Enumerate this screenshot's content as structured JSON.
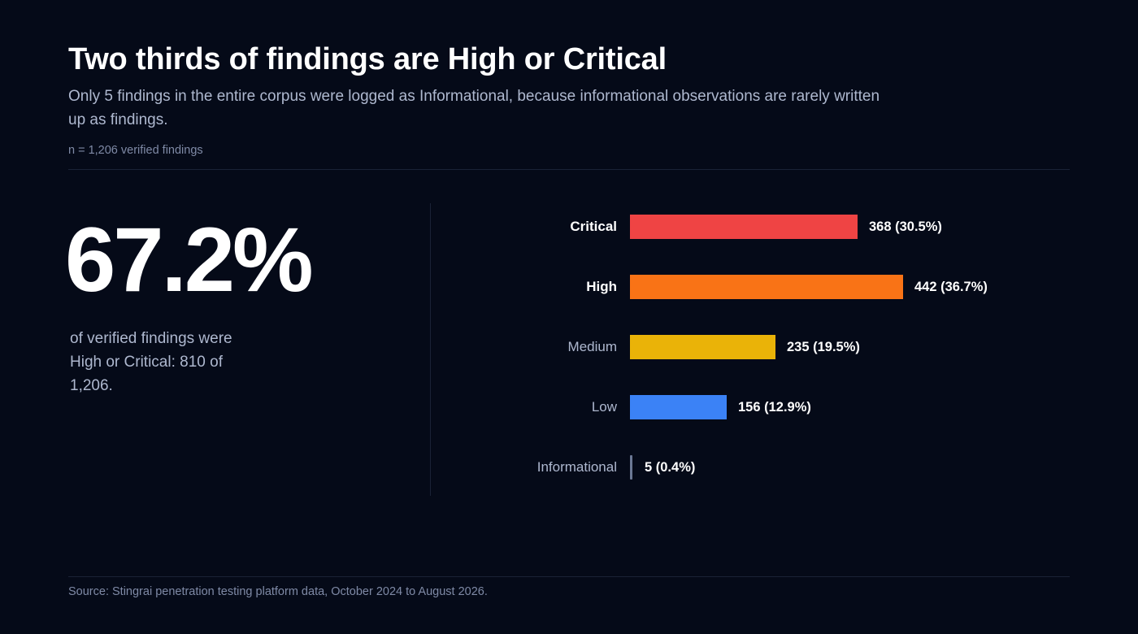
{
  "header": {
    "title": "Two thirds of findings are High or Critical",
    "subtitle": "Only 5 findings in the entire corpus were logged as Informational, because informational observations are rarely written up as findings.",
    "sample": "n = 1,206 verified findings"
  },
  "stat": {
    "value": "67.2%",
    "caption": "of verified findings were High or Critical: 810 of 1,206."
  },
  "chart_data": {
    "type": "bar",
    "orientation": "horizontal",
    "title": "",
    "xlabel": "",
    "ylabel": "",
    "grid": false,
    "xlim": [
      0,
      442
    ],
    "categories": [
      "Critical",
      "High",
      "Medium",
      "Low",
      "Informational"
    ],
    "values": [
      368,
      442,
      235,
      156,
      5
    ],
    "value_labels": [
      "368 (30.5%)",
      "442 (36.7%)",
      "235 (19.5%)",
      "156 (12.9%)",
      "5 (0.4%)"
    ],
    "emphasized": [
      true,
      true,
      false,
      false,
      false
    ],
    "colors": [
      "#ef4444",
      "#f97316",
      "#eab308",
      "#3b82f6",
      "#6b7894"
    ]
  },
  "footer": {
    "source": "Source: Stingrai penetration testing platform data, October 2024 to August 2026."
  }
}
